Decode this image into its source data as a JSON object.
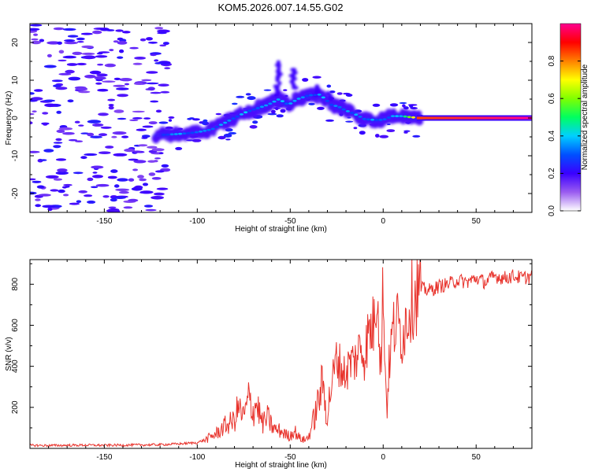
{
  "title": "KOM5.2026.007.14.55.G02",
  "chart_data": [
    {
      "type": "heatmap",
      "xlabel": "Height of straight line (km)",
      "ylabel": "Frequency (Hz)",
      "xlim": [
        -190,
        80
      ],
      "ylim": [
        -25,
        25
      ],
      "xticks": [
        -150,
        -100,
        -50,
        0,
        50
      ],
      "xtick_labels": [
        "-150",
        "-100",
        "-50",
        "0",
        "50"
      ],
      "yticks": [
        -20,
        -10,
        0,
        10,
        20
      ],
      "ytick_labels": [
        "-20",
        "-10",
        "0",
        "10",
        "20"
      ],
      "ridge": {
        "x": [
          -120,
          -112,
          -104,
          -98,
          -92,
          -86,
          -80,
          -74,
          -68,
          -62,
          -56,
          -51,
          -46,
          -40,
          -34,
          -30,
          -28,
          -24,
          -20,
          -15,
          -10,
          -5,
          0,
          5,
          10,
          15,
          20,
          40,
          60,
          80
        ],
        "freq": [
          -4.5,
          -4.3,
          -4.0,
          -3.6,
          -3.0,
          -1.5,
          0.0,
          1.5,
          2.5,
          3.5,
          5.0,
          3.5,
          5.0,
          6.0,
          6.2,
          4.5,
          3.5,
          3.0,
          2.0,
          1.0,
          -0.3,
          -0.5,
          -0.5,
          0.5,
          0.5,
          0.2,
          0.0,
          0.0,
          0.0,
          0.0
        ],
        "amp": [
          0.25,
          0.3,
          0.3,
          0.32,
          0.28,
          0.3,
          0.3,
          0.32,
          0.3,
          0.35,
          0.35,
          0.3,
          0.3,
          0.3,
          0.32,
          0.3,
          0.28,
          0.3,
          0.3,
          0.3,
          0.3,
          0.3,
          0.3,
          0.35,
          0.4,
          0.55,
          0.9,
          0.92,
          0.95,
          1.0
        ]
      },
      "colorbar": {
        "label": "Normalized spectral amplitude",
        "range": [
          0,
          1
        ],
        "ticks": [
          0.0,
          0.2,
          0.4,
          0.6,
          0.8
        ],
        "tick_labels": [
          "0.0",
          "0.2",
          "0.4",
          "0.6",
          "0.8"
        ],
        "colors": [
          "#ffffff",
          "#9a5cf0",
          "#3a00ff",
          "#0050ff",
          "#00d0ff",
          "#00ff60",
          "#80ff00",
          "#ffff00",
          "#ff8000",
          "#ff0000",
          "#ff0090"
        ]
      }
    },
    {
      "type": "line",
      "xlabel": "Height of straight line (km)",
      "ylabel": "SNR (v/v)",
      "xlim": [
        -190,
        80
      ],
      "ylim": [
        0,
        920
      ],
      "xticks": [
        -150,
        -100,
        -50,
        0,
        50
      ],
      "xtick_labels": [
        "-150",
        "-100",
        "-50",
        "0",
        "50"
      ],
      "yticks": [
        200,
        400,
        600,
        800
      ],
      "ytick_labels": [
        "200",
        "400",
        "600",
        "800"
      ],
      "color": "#e8332c",
      "series": [
        {
          "name": "SNR",
          "x": [
            -190,
            -180,
            -170,
            -160,
            -150,
            -140,
            -130,
            -120,
            -110,
            -100,
            -95,
            -90,
            -85,
            -80,
            -78,
            -75,
            -72,
            -70,
            -68,
            -65,
            -62,
            -60,
            -58,
            -55,
            -52,
            -50,
            -48,
            -45,
            -42,
            -40,
            -38,
            -35,
            -33,
            -30,
            -28,
            -25,
            -22,
            -20,
            -18,
            -15,
            -12,
            -10,
            -8,
            -5,
            -3,
            -2,
            -1,
            0,
            1,
            2,
            3,
            5,
            8,
            10,
            15,
            20,
            25,
            30,
            35,
            40,
            45,
            50,
            55,
            60,
            65,
            70,
            75,
            80
          ],
          "y": [
            15,
            14,
            15,
            16,
            15,
            16,
            17,
            18,
            22,
            28,
            45,
            70,
            110,
            135,
            200,
            150,
            250,
            180,
            220,
            120,
            150,
            110,
            90,
            85,
            65,
            60,
            90,
            50,
            40,
            60,
            120,
            220,
            330,
            160,
            300,
            440,
            380,
            360,
            420,
            430,
            500,
            450,
            560,
            600,
            840,
            520,
            380,
            870,
            400,
            200,
            380,
            570,
            620,
            540,
            720,
            780,
            770,
            790,
            800,
            820,
            810,
            830,
            810,
            840,
            830,
            840,
            830,
            840
          ]
        }
      ]
    }
  ]
}
